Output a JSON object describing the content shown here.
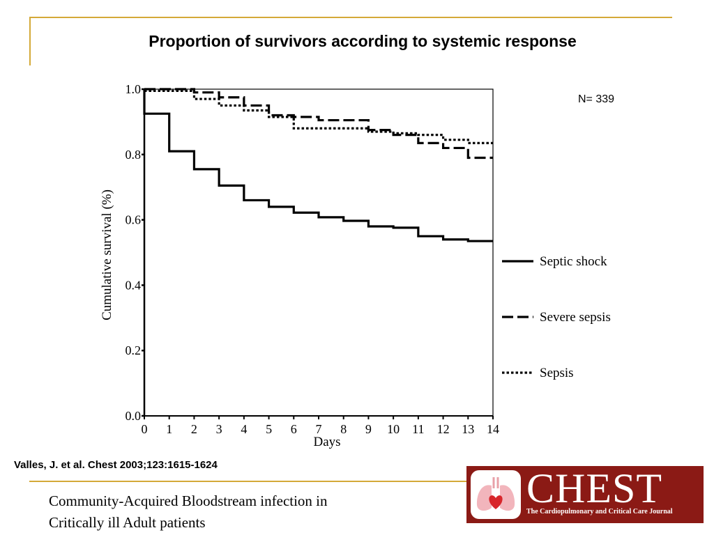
{
  "slide": {
    "title": "Proportion of survivors according to systemic response",
    "n_label": "N= 339",
    "citation": "Valles, J. et al. Chest 2003;123:1615-1624",
    "subtitle_line1": "Community-Acquired Bloodstream infection in",
    "subtitle_line2": "Critically ill Adult patients"
  },
  "logo": {
    "word": "CHEST",
    "tagline": "The Cardiopulmonary and Critical Care Journal",
    "icon": "lungs-heart-icon",
    "color": "#8b1a15"
  },
  "colors": {
    "accent_rule": "#d4a938",
    "series": "#000000"
  },
  "chart_data": {
    "type": "line",
    "step": true,
    "xlabel": "Days",
    "ylabel": "Cumulative survival (%)",
    "xlim": [
      0,
      14
    ],
    "ylim": [
      0,
      1.0
    ],
    "x_ticks": [
      "0",
      "1",
      "2",
      "3",
      "4",
      "5",
      "6",
      "7",
      "8",
      "9",
      "10",
      "11",
      "12",
      "13",
      "14"
    ],
    "y_ticks": [
      "0.0",
      "0.2",
      "0.4",
      "0.6",
      "0.8",
      "1.0"
    ],
    "grid": false,
    "legend_position": "right",
    "series": [
      {
        "name": "Septic shock",
        "style": "solid",
        "points": [
          [
            0,
            1.0
          ],
          [
            0,
            0.925
          ],
          [
            1,
            0.81
          ],
          [
            2,
            0.755
          ],
          [
            3,
            0.705
          ],
          [
            4,
            0.66
          ],
          [
            5,
            0.64
          ],
          [
            6,
            0.622
          ],
          [
            7,
            0.608
          ],
          [
            8,
            0.597
          ],
          [
            9,
            0.58
          ],
          [
            10,
            0.576
          ],
          [
            11,
            0.55
          ],
          [
            12,
            0.54
          ],
          [
            13,
            0.535
          ],
          [
            14,
            0.535
          ]
        ]
      },
      {
        "name": "Severe sepsis",
        "style": "dashed",
        "points": [
          [
            0,
            1.0
          ],
          [
            2,
            0.99
          ],
          [
            3,
            0.975
          ],
          [
            4,
            0.95
          ],
          [
            5,
            0.92
          ],
          [
            6,
            0.915
          ],
          [
            7,
            0.905
          ],
          [
            9,
            0.875
          ],
          [
            10,
            0.86
          ],
          [
            11,
            0.835
          ],
          [
            12,
            0.82
          ],
          [
            13,
            0.79
          ],
          [
            14,
            0.79
          ]
        ]
      },
      {
        "name": "Sepsis",
        "style": "dotted",
        "points": [
          [
            0,
            0.995
          ],
          [
            2,
            0.97
          ],
          [
            3,
            0.95
          ],
          [
            4,
            0.935
          ],
          [
            5,
            0.915
          ],
          [
            6,
            0.88
          ],
          [
            9,
            0.87
          ],
          [
            10,
            0.865
          ],
          [
            11,
            0.86
          ],
          [
            12,
            0.845
          ],
          [
            13,
            0.835
          ],
          [
            14,
            0.835
          ]
        ]
      }
    ]
  }
}
